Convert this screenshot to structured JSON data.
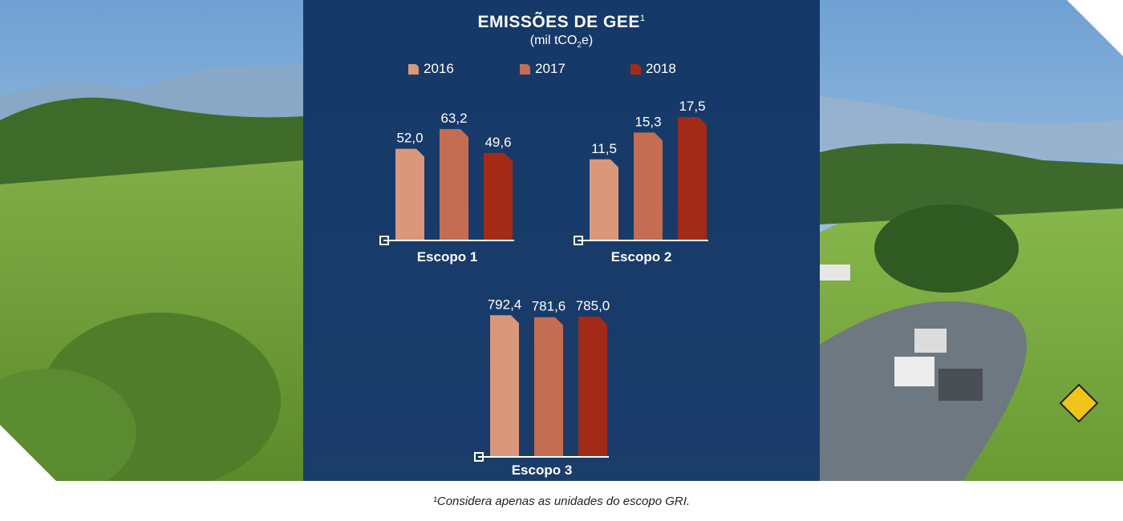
{
  "chart_data": [
    {
      "type": "bar",
      "xlabel": "Escopo 1",
      "categories": [
        "2016",
        "2017",
        "2018"
      ],
      "values": [
        52.0,
        63.2,
        49.6
      ],
      "value_labels": [
        "52,0",
        "63,2",
        "49,6"
      ]
    },
    {
      "type": "bar",
      "xlabel": "Escopo 2",
      "categories": [
        "2016",
        "2017",
        "2018"
      ],
      "values": [
        11.5,
        15.3,
        17.5
      ],
      "value_labels": [
        "11,5",
        "15,3",
        "17,5"
      ]
    },
    {
      "type": "bar",
      "xlabel": "Escopo 3",
      "categories": [
        "2016",
        "2017",
        "2018"
      ],
      "values": [
        792.4,
        781.6,
        785.0
      ],
      "value_labels": [
        "792,4",
        "781,6",
        "785,0"
      ]
    }
  ],
  "header": {
    "title": "EMISSÕES DE GEE",
    "title_note": "1",
    "subtitle_pre": "(mil tCO",
    "subtitle_sub": "2",
    "subtitle_post": "e)"
  },
  "legend": [
    {
      "label": "2016",
      "color": "#d9987a"
    },
    {
      "label": "2017",
      "color": "#c46d52"
    },
    {
      "label": "2018",
      "color": "#a22a16"
    }
  ],
  "footnote": "¹Considera apenas as unidades do escopo GRI.",
  "colors": {
    "panel": "#0e3060",
    "sky": "#8fb6dd",
    "grass": "#6e9a3a",
    "road": "#6d7880"
  }
}
